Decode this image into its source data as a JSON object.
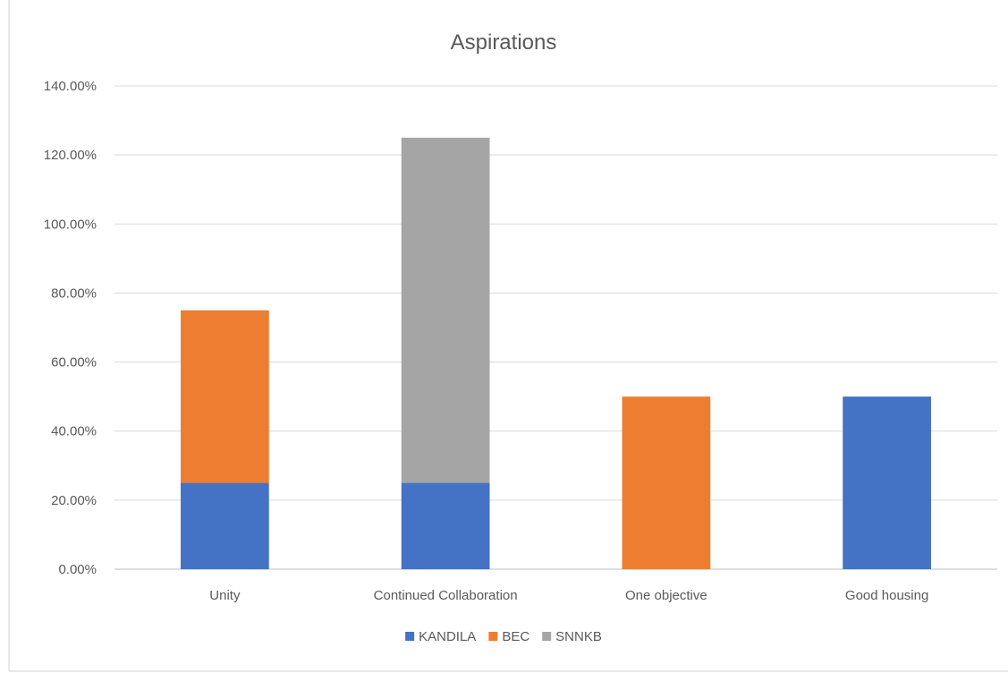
{
  "chart_data": {
    "type": "bar",
    "stacked": true,
    "title": "Aspirations",
    "xlabel": "",
    "ylabel": "",
    "categories": [
      "Unity",
      "Continued Collaboration",
      "One objective",
      "Good housing"
    ],
    "series": [
      {
        "name": "KANDILA",
        "color": "#4472c4",
        "values": [
          0.25,
          0.25,
          0,
          0.5
        ]
      },
      {
        "name": "BEC",
        "color": "#ed7d31",
        "values": [
          0.5,
          0,
          0.5,
          0
        ]
      },
      {
        "name": "SNNKB",
        "color": "#a5a5a5",
        "values": [
          0,
          1.0,
          0,
          0
        ]
      }
    ],
    "ylim": [
      0,
      1.4
    ],
    "yticks": [
      0,
      0.2,
      0.4,
      0.6,
      0.8,
      1.0,
      1.2,
      1.4
    ],
    "ytick_labels": [
      "0.00%",
      "20.00%",
      "40.00%",
      "60.00%",
      "80.00%",
      "100.00%",
      "120.00%",
      "140.00%"
    ],
    "grid": true,
    "legend_position": "bottom"
  }
}
